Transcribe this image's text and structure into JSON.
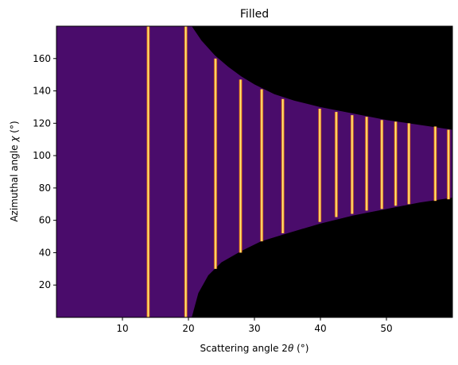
{
  "chart_data": {
    "type": "heatmap",
    "title": "Filled",
    "xlabel_prefix": "Scattering angle 2",
    "xlabel_symbol": "θ",
    "xlabel_suffix": " (°)",
    "ylabel_prefix": "Azimuthal angle ",
    "ylabel_symbol": "χ",
    "ylabel_suffix": " (°)",
    "xlim": [
      0,
      60
    ],
    "ylim": [
      0,
      180
    ],
    "xticks": [
      10,
      20,
      30,
      40,
      50
    ],
    "yticks": [
      20,
      40,
      60,
      80,
      100,
      120,
      140,
      160
    ],
    "background_value_color": "#4a0c6b",
    "masked_color": "#000000",
    "peak_color_core": "#fcffa4",
    "peak_color_edge": "#f98e09",
    "rings": [
      {
        "two_theta": 13.9,
        "chi_min": 0,
        "chi_max": 180
      },
      {
        "two_theta": 19.6,
        "chi_min": 0,
        "chi_max": 180
      },
      {
        "two_theta": 24.1,
        "chi_min": 30,
        "chi_max": 160
      },
      {
        "two_theta": 27.9,
        "chi_min": 40,
        "chi_max": 147
      },
      {
        "two_theta": 31.1,
        "chi_min": 47,
        "chi_max": 141
      },
      {
        "two_theta": 34.3,
        "chi_min": 52,
        "chi_max": 135
      },
      {
        "two_theta": 39.9,
        "chi_min": 59,
        "chi_max": 129
      },
      {
        "two_theta": 42.4,
        "chi_min": 62,
        "chi_max": 127
      },
      {
        "two_theta": 44.8,
        "chi_min": 64,
        "chi_max": 125
      },
      {
        "two_theta": 47.0,
        "chi_min": 66,
        "chi_max": 124
      },
      {
        "two_theta": 49.3,
        "chi_min": 67,
        "chi_max": 122
      },
      {
        "two_theta": 51.4,
        "chi_min": 69,
        "chi_max": 121
      },
      {
        "two_theta": 53.4,
        "chi_min": 70,
        "chi_max": 120
      },
      {
        "two_theta": 57.4,
        "chi_min": 72,
        "chi_max": 118
      },
      {
        "two_theta": 59.4,
        "chi_min": 73,
        "chi_max": 116
      }
    ],
    "filled_boundary_upper": [
      [
        0,
        180
      ],
      [
        20.5,
        180
      ],
      [
        22,
        171
      ],
      [
        24,
        162
      ],
      [
        26,
        155
      ],
      [
        28,
        149
      ],
      [
        30,
        144
      ],
      [
        33,
        138
      ],
      [
        36,
        134
      ],
      [
        40,
        130
      ],
      [
        45,
        126
      ],
      [
        50,
        122
      ],
      [
        55,
        119
      ],
      [
        60,
        116
      ]
    ],
    "filled_boundary_lower": [
      [
        0,
        0
      ],
      [
        20.5,
        0
      ],
      [
        21.5,
        15
      ],
      [
        23,
        26
      ],
      [
        25,
        34
      ],
      [
        28,
        41
      ],
      [
        31,
        47
      ],
      [
        35,
        52
      ],
      [
        40,
        58
      ],
      [
        45,
        63
      ],
      [
        50,
        67
      ],
      [
        55,
        71
      ],
      [
        60,
        74
      ]
    ]
  }
}
